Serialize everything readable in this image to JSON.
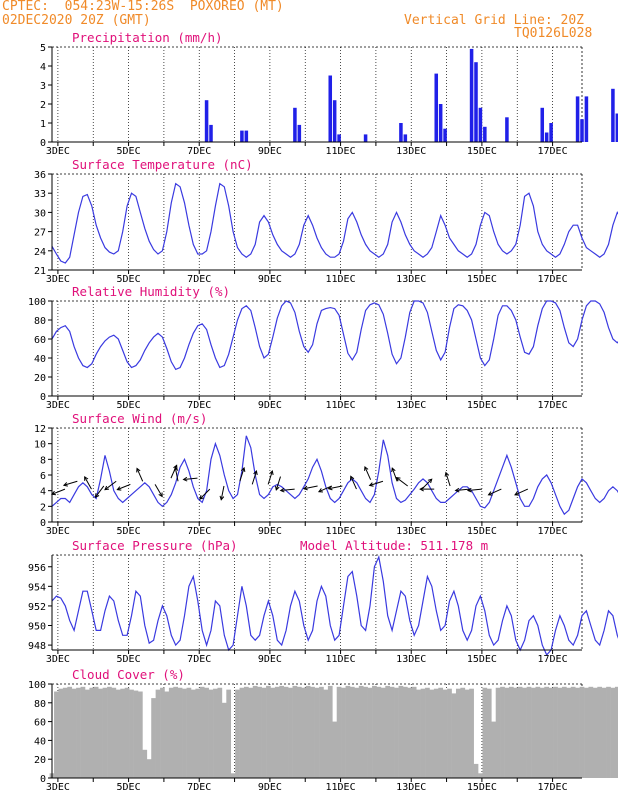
{
  "header": {
    "line1": "CPTEC:  054:23W-15:26S  POXOREO (MT)",
    "line2": "02DEC2020 20Z (GMT)",
    "grid_label": "Vertical Grid Line: 20Z",
    "code": "TQ0126L028"
  },
  "x_ticks": [
    "3DEC",
    "5DEC",
    "7DEC",
    "9DEC",
    "11DEC",
    "13DEC",
    "15DEC",
    "17DEC"
  ],
  "colors": {
    "header": "#f08a28",
    "title": "#e0107a",
    "line": "#3a3ae0",
    "bar": "#2020e8",
    "cloud": "#b0b0b0",
    "axis": "#000000"
  },
  "chart_data": [
    {
      "id": "precip",
      "type": "bar",
      "title": "Precipitation (mm/h)",
      "ylim": [
        0,
        5
      ],
      "yticks": [
        0,
        1,
        2,
        3,
        4,
        5
      ],
      "x_range_days": [
        2.833,
        17.833
      ],
      "step_hours": 3,
      "values": [
        0.0,
        0.0,
        0.0,
        0.0,
        0.0,
        0.0,
        0.0,
        0.0,
        0.0,
        0.0,
        0.0,
        0.0,
        0.0,
        0.0,
        0.0,
        0.0,
        0.0,
        0.0,
        0.0,
        0.0,
        0.0,
        0.0,
        0.0,
        0.0,
        0.0,
        0.0,
        0.0,
        0.0,
        0.0,
        0.0,
        0.0,
        0.0,
        0.0,
        0.0,
        0.0,
        2.2,
        0.9,
        0.0,
        0.0,
        0.0,
        0.0,
        0.0,
        0.0,
        0.6,
        0.6,
        0.0,
        0.0,
        0.0,
        0.0,
        0.0,
        0.0,
        0.0,
        0.0,
        0.0,
        0.0,
        1.8,
        0.9,
        0.0,
        0.0,
        0.0,
        0.0,
        0.0,
        0.0,
        3.5,
        2.2,
        0.4,
        0.0,
        0.0,
        0.0,
        0.0,
        0.0,
        0.4,
        0.0,
        0.0,
        0.0,
        0.0,
        0.0,
        0.0,
        0.0,
        1.0,
        0.4,
        0.0,
        0.0,
        0.0,
        0.0,
        0.0,
        0.0,
        3.6,
        2.0,
        0.7,
        0.0,
        0.0,
        0.0,
        0.0,
        0.0,
        4.9,
        4.2,
        1.8,
        0.8,
        0.0,
        0.0,
        0.0,
        0.0,
        1.3,
        0.0,
        0.0,
        0.0,
        0.0,
        0.0,
        0.0,
        0.0,
        1.8,
        0.5,
        1.0,
        0.0,
        0.0,
        0.0,
        0.0,
        0.0,
        2.4,
        1.2,
        2.4,
        0.0,
        0.0,
        0.0,
        0.0,
        0.0,
        2.8,
        1.5,
        0.0,
        0.0,
        0.0,
        0.0,
        0.0,
        0.0,
        0.0,
        0.0,
        0.0,
        0.0,
        0.0,
        0.0,
        0.0,
        0.0,
        0.5,
        0.0,
        0.0,
        0.0,
        0.0,
        0.0,
        0.0,
        0.0,
        1.0,
        0.7,
        0.0,
        0.0,
        0.0,
        0.0,
        0.0,
        0.0,
        2.3,
        1.5,
        0.0
      ]
    },
    {
      "id": "temp",
      "type": "line",
      "title": "Surface Temperature (nC)",
      "ylim": [
        21,
        36
      ],
      "yticks": [
        21,
        24,
        27,
        30,
        33,
        36
      ],
      "x_range_days": [
        2.833,
        17.833
      ],
      "step_hours": 3,
      "values": [
        24.7,
        23.5,
        22.4,
        22.1,
        23.0,
        26.5,
        30.0,
        32.5,
        32.8,
        31.0,
        28.0,
        26.0,
        24.5,
        23.8,
        23.5,
        24.0,
        27.0,
        31.0,
        33.0,
        32.5,
        30.0,
        27.5,
        25.5,
        24.2,
        23.5,
        24.0,
        27.0,
        31.5,
        34.5,
        34.0,
        31.5,
        28.0,
        25.0,
        23.5,
        23.5,
        24.0,
        27.0,
        31.0,
        34.5,
        34.0,
        31.0,
        27.0,
        24.5,
        23.5,
        23.0,
        23.5,
        25.0,
        28.5,
        29.5,
        28.5,
        26.5,
        25.0,
        24.0,
        23.5,
        23.0,
        23.5,
        25.0,
        28.0,
        29.5,
        28.0,
        26.0,
        24.5,
        23.5,
        23.0,
        23.0,
        23.5,
        25.5,
        29.0,
        30.0,
        28.5,
        26.5,
        25.0,
        24.0,
        23.5,
        23.0,
        23.5,
        25.0,
        28.5,
        30.0,
        28.5,
        26.5,
        25.0,
        24.0,
        23.5,
        23.0,
        23.5,
        24.5,
        27.0,
        29.5,
        28.0,
        26.0,
        25.0,
        24.0,
        23.5,
        23.0,
        23.5,
        25.0,
        28.0,
        30.0,
        29.5,
        27.0,
        25.0,
        24.0,
        23.5,
        24.0,
        25.0,
        28.0,
        32.5,
        33.0,
        31.0,
        27.0,
        25.0,
        24.0,
        23.5,
        23.0,
        23.5,
        25.0,
        27.0,
        28.0,
        28.0,
        26.0,
        24.5,
        24.0,
        23.5,
        23.0,
        23.5,
        25.0,
        28.0,
        30.0,
        29.0,
        26.5,
        24.5,
        23.5,
        22.8,
        22.5,
        23.0,
        24.0,
        26.0,
        27.0,
        26.0,
        24.0,
        23.0,
        23.0,
        23.5,
        24.0,
        24.5,
        25.5,
        27.0,
        29.5,
        29.0,
        27.0,
        25.0,
        24.0,
        23.5,
        23.5,
        24.0,
        25.0,
        27.0,
        28.0,
        27.5,
        27.0,
        26.5
      ]
    },
    {
      "id": "rh",
      "type": "line",
      "title": "Relative Humidity (%)",
      "ylim": [
        0,
        100
      ],
      "yticks": [
        0,
        20,
        40,
        60,
        80,
        100
      ],
      "x_range_days": [
        2.833,
        17.833
      ],
      "step_hours": 3,
      "values": [
        60.0,
        68.0,
        72.0,
        74.0,
        68.0,
        52.0,
        40.0,
        32.0,
        30.0,
        34.0,
        44.0,
        52.0,
        58.0,
        62.0,
        64.0,
        60.0,
        48.0,
        36.0,
        30.0,
        32.0,
        38.0,
        48.0,
        56.0,
        62.0,
        66.0,
        62.0,
        50.0,
        36.0,
        28.0,
        30.0,
        40.0,
        54.0,
        66.0,
        74.0,
        76.0,
        70.0,
        54.0,
        40.0,
        30.0,
        32.0,
        44.0,
        62.0,
        80.0,
        92.0,
        95.0,
        90.0,
        72.0,
        52.0,
        40.0,
        44.0,
        62.0,
        82.0,
        95.0,
        100.0,
        98.0,
        88.0,
        68.0,
        52.0,
        46.0,
        54.0,
        76.0,
        90.0,
        92.0,
        93.0,
        92.0,
        85.0,
        65.0,
        45.0,
        38.0,
        46.0,
        70.0,
        90.0,
        96.0,
        98.0,
        96.0,
        86.0,
        66.0,
        44.0,
        34.0,
        40.0,
        62.0,
        88.0,
        100.0,
        100.0,
        98.0,
        88.0,
        68.0,
        48.0,
        38.0,
        46.0,
        72.0,
        92.0,
        96.0,
        95.0,
        90.0,
        80.0,
        60.0,
        40.0,
        32.0,
        38.0,
        60.0,
        85.0,
        95.0,
        95.0,
        90.0,
        80.0,
        62.0,
        46.0,
        44.0,
        52.0,
        74.0,
        92.0,
        100.0,
        100.0,
        98.0,
        90.0,
        72.0,
        56.0,
        52.0,
        60.0,
        80.0,
        95.0,
        100.0,
        100.0,
        97.0,
        88.0,
        72.0,
        60.0,
        56.0,
        62.0,
        78.0,
        92.0,
        98.0,
        99.0,
        97.0,
        90.0,
        74.0,
        58.0,
        48.0,
        52.0,
        70.0,
        86.0,
        92.0,
        93.0,
        91.0,
        84.0,
        66.0,
        50.0,
        42.0,
        50.0,
        68.0,
        84.0,
        92.0,
        95.0,
        96.0,
        90.0,
        72.0,
        54.0,
        50.0,
        62.0,
        84.0,
        96.0,
        99.0,
        95.0,
        88.0,
        92.0
      ]
    },
    {
      "id": "wind",
      "type": "line",
      "title": "Surface Wind (m/s)",
      "ylim": [
        0,
        12
      ],
      "yticks": [
        0,
        2,
        4,
        6,
        8,
        10,
        12
      ],
      "x_range_days": [
        2.833,
        17.833
      ],
      "step_hours": 3,
      "values": [
        2.0,
        2.5,
        3.0,
        3.0,
        2.5,
        3.5,
        4.5,
        5.0,
        4.5,
        3.5,
        3.0,
        5.5,
        8.5,
        6.5,
        4.0,
        3.0,
        2.5,
        3.0,
        3.5,
        4.0,
        4.5,
        5.0,
        4.5,
        3.5,
        2.5,
        2.0,
        2.5,
        3.5,
        5.0,
        7.0,
        8.0,
        6.5,
        4.5,
        3.0,
        2.5,
        4.0,
        8.0,
        10.0,
        8.5,
        6.0,
        4.0,
        3.0,
        3.5,
        6.5,
        11.0,
        9.5,
        6.0,
        3.5,
        3.0,
        3.5,
        4.5,
        4.8,
        4.5,
        4.0,
        3.5,
        3.0,
        3.5,
        4.5,
        5.5,
        7.0,
        8.0,
        6.5,
        4.5,
        3.0,
        2.5,
        3.0,
        4.0,
        5.0,
        5.5,
        5.0,
        4.0,
        3.0,
        2.5,
        3.5,
        6.5,
        10.5,
        8.5,
        5.0,
        3.0,
        2.5,
        2.8,
        3.5,
        4.2,
        5.0,
        5.5,
        5.0,
        4.0,
        3.0,
        2.5,
        2.5,
        3.0,
        3.5,
        4.0,
        4.5,
        4.5,
        4.0,
        3.0,
        2.0,
        1.8,
        2.5,
        4.0,
        5.5,
        7.0,
        8.5,
        7.0,
        5.0,
        3.0,
        2.0,
        2.0,
        3.0,
        4.5,
        5.5,
        6.0,
        5.0,
        3.5,
        2.0,
        1.0,
        1.5,
        3.0,
        4.5,
        5.5,
        5.0,
        4.0,
        3.0,
        2.5,
        3.0,
        4.0,
        4.5,
        4.0,
        3.0,
        3.5,
        5.0,
        6.0,
        5.5,
        4.0,
        3.0,
        3.0,
        3.5,
        4.0,
        4.5,
        5.0,
        4.5,
        3.5,
        3.0,
        3.5,
        4.0,
        4.5,
        4.5,
        4.0,
        3.5,
        3.0,
        3.5,
        4.0,
        3.5,
        3.0,
        3.5,
        4.0,
        3.5
      ],
      "arrows": [
        {
          "d": 3.2,
          "s": 4.2,
          "dx": -1,
          "dy": -0.4
        },
        {
          "d": 3.55,
          "s": 5.2,
          "dx": -1,
          "dy": -0.3
        },
        {
          "d": 3.95,
          "s": 4.2,
          "dx": -0.5,
          "dy": 0.9
        },
        {
          "d": 4.3,
          "s": 4.6,
          "dx": -0.6,
          "dy": -0.8
        },
        {
          "d": 4.65,
          "s": 5.2,
          "dx": -0.8,
          "dy": -0.6
        },
        {
          "d": 5.05,
          "s": 4.8,
          "dx": -1,
          "dy": -0.4
        },
        {
          "d": 5.4,
          "s": 5.2,
          "dx": -0.4,
          "dy": 0.9
        },
        {
          "d": 5.75,
          "s": 4.8,
          "dx": 0.5,
          "dy": -0.85
        },
        {
          "d": 6.2,
          "s": 5.6,
          "dx": 0.4,
          "dy": 0.9
        },
        {
          "d": 6.4,
          "s": 5.2,
          "dx": -0.2,
          "dy": 1
        },
        {
          "d": 6.95,
          "s": 5.6,
          "dx": -1,
          "dy": -0.1
        },
        {
          "d": 7.3,
          "s": 4.2,
          "dx": -0.7,
          "dy": -0.7
        },
        {
          "d": 7.7,
          "s": 4.6,
          "dx": -0.2,
          "dy": -1
        },
        {
          "d": 8.15,
          "s": 5.2,
          "dx": 0.3,
          "dy": 0.95
        },
        {
          "d": 8.5,
          "s": 4.8,
          "dx": 0.3,
          "dy": 0.95
        },
        {
          "d": 8.95,
          "s": 4.8,
          "dx": 0.3,
          "dy": 0.95
        },
        {
          "d": 9.3,
          "s": 5.8,
          "dx": -0.3,
          "dy": -0.95
        },
        {
          "d": 9.7,
          "s": 4.2,
          "dx": -1,
          "dy": -0.1
        },
        {
          "d": 10.35,
          "s": 4.6,
          "dx": -1,
          "dy": -0.2
        },
        {
          "d": 10.75,
          "s": 4.6,
          "dx": -0.9,
          "dy": -0.4
        },
        {
          "d": 11.05,
          "s": 4.6,
          "dx": -1,
          "dy": -0.2
        },
        {
          "d": 11.45,
          "s": 4.2,
          "dx": -0.4,
          "dy": 0.9
        },
        {
          "d": 11.85,
          "s": 5.4,
          "dx": -0.4,
          "dy": 0.9
        },
        {
          "d": 12.2,
          "s": 5.2,
          "dx": -0.95,
          "dy": -0.3
        },
        {
          "d": 12.6,
          "s": 5.2,
          "dx": -0.35,
          "dy": 0.95
        },
        {
          "d": 12.9,
          "s": 4.6,
          "dx": -0.8,
          "dy": 0.6
        },
        {
          "d": 13.3,
          "s": 4.2,
          "dx": 0.7,
          "dy": 0.7
        },
        {
          "d": 13.65,
          "s": 4.2,
          "dx": -1,
          "dy": 0
        },
        {
          "d": 14.1,
          "s": 4.6,
          "dx": -0.3,
          "dy": 0.95
        },
        {
          "d": 14.65,
          "s": 4.2,
          "dx": -1,
          "dy": -0.1
        },
        {
          "d": 15.0,
          "s": 4.2,
          "dx": -1,
          "dy": -0.1
        },
        {
          "d": 15.55,
          "s": 4.2,
          "dx": -0.9,
          "dy": -0.4
        },
        {
          "d": 16.3,
          "s": 4.2,
          "dx": -0.9,
          "dy": -0.4
        }
      ]
    },
    {
      "id": "press",
      "type": "line",
      "title": "Surface Pressure (hPa)",
      "annotation": "Model Altitude: 511.178 m",
      "ylim": [
        947.5,
        957.2
      ],
      "yticks": [
        948,
        950,
        952,
        954,
        956
      ],
      "x_range_days": [
        2.833,
        17.833
      ],
      "step_hours": 3,
      "values": [
        952.5,
        953.0,
        952.8,
        952.0,
        950.5,
        949.5,
        951.5,
        953.5,
        953.5,
        951.5,
        949.5,
        949.5,
        951.5,
        953.0,
        952.5,
        950.5,
        949.0,
        949.0,
        951.0,
        953.5,
        953.0,
        950.0,
        948.2,
        948.5,
        950.5,
        952.0,
        951.0,
        949.0,
        948.0,
        948.5,
        951.0,
        954.0,
        955.0,
        952.5,
        949.5,
        948.0,
        949.5,
        952.5,
        952.0,
        949.0,
        947.5,
        948.0,
        951.0,
        954.0,
        952.0,
        949.0,
        948.5,
        949.0,
        951.0,
        952.5,
        951.0,
        948.5,
        948.0,
        949.5,
        952.0,
        953.5,
        952.5,
        950.0,
        948.5,
        949.5,
        952.5,
        954.0,
        953.0,
        950.0,
        948.5,
        949.0,
        952.0,
        955.0,
        955.5,
        953.0,
        950.0,
        949.5,
        952.0,
        956.0,
        957.0,
        954.5,
        951.0,
        949.5,
        951.5,
        953.5,
        953.0,
        950.5,
        949.0,
        950.0,
        952.5,
        955.0,
        954.0,
        951.5,
        949.5,
        950.0,
        952.5,
        953.5,
        952.0,
        949.5,
        948.5,
        949.5,
        952.0,
        953.0,
        951.5,
        949.0,
        948.0,
        948.5,
        950.5,
        952.0,
        951.0,
        948.5,
        947.5,
        948.5,
        950.5,
        951.0,
        950.0,
        948.0,
        947.0,
        947.5,
        949.5,
        951.0,
        950.0,
        948.5,
        948.0,
        949.0,
        951.0,
        951.5,
        950.0,
        948.5,
        948.0,
        949.5,
        951.5,
        951.0,
        949.0,
        947.8,
        948.0,
        950.0,
        951.5,
        950.5,
        948.5,
        947.8,
        948.5,
        950.5,
        951.5,
        950.0,
        948.5,
        948.0,
        948.5,
        950.0,
        951.0,
        950.0,
        948.5,
        947.8,
        948.5,
        950.0,
        950.5,
        949.5,
        948.2,
        947.5,
        948.0,
        949.5,
        950.5,
        949.5,
        948.5,
        948.0,
        949.0,
        950.0,
        949.0,
        948.0,
        948.0,
        949.5
      ]
    },
    {
      "id": "cloud",
      "type": "area",
      "title": "Cloud Cover (%)",
      "ylim": [
        0,
        100
      ],
      "yticks": [
        0,
        20,
        40,
        60,
        80,
        100
      ],
      "x_range_days": [
        2.833,
        17.833
      ],
      "step_hours": 3,
      "values": [
        5.0,
        92.0,
        95.0,
        96.0,
        97.0,
        95.0,
        96.0,
        97.0,
        94.0,
        96.0,
        97.0,
        95.0,
        96.0,
        97.0,
        96.0,
        94.0,
        95.0,
        96.0,
        94.0,
        93.0,
        92.0,
        30.0,
        20.0,
        85.0,
        94.0,
        96.0,
        92.0,
        96.0,
        97.0,
        96.0,
        95.0,
        96.0,
        94.0,
        95.0,
        97.0,
        96.0,
        94.0,
        95.0,
        96.0,
        80.0,
        94.0,
        5.0,
        94.0,
        96.0,
        97.0,
        96.0,
        98.0,
        97.0,
        96.0,
        98.0,
        96.0,
        97.0,
        98.0,
        97.0,
        96.0,
        98.0,
        97.0,
        96.0,
        98.0,
        97.0,
        96.0,
        97.0,
        94.0,
        98.0,
        60.0,
        97.0,
        96.0,
        98.0,
        97.0,
        96.0,
        98.0,
        97.0,
        96.0,
        98.0,
        97.0,
        96.0,
        98.0,
        97.0,
        96.0,
        98.0,
        97.0,
        96.0,
        97.0,
        94.0,
        95.0,
        96.0,
        94.0,
        95.0,
        96.0,
        94.0,
        95.0,
        90.0,
        95.0,
        96.0,
        94.0,
        95.0,
        15.0,
        5.0,
        96.0,
        95.0,
        60.0,
        96.0,
        97.0,
        96.0,
        97.0,
        96.0,
        97.0,
        96.0,
        97.0,
        96.0,
        97.0,
        96.0,
        97.0,
        96.0,
        97.0,
        96.0,
        97.0,
        96.0,
        97.0,
        96.0,
        97.0,
        96.0,
        97.0,
        96.0,
        97.0,
        96.0,
        97.0,
        96.0,
        97.0,
        96.0,
        97.0,
        96.0,
        97.0,
        96.0,
        97.0,
        96.0,
        97.0,
        96.0,
        97.0,
        96.0,
        97.0,
        96.0,
        97.0,
        96.0,
        97.0,
        96.0,
        97.0,
        96.0,
        97.0,
        96.0,
        97.0,
        96.0,
        97.0,
        96.0,
        97.0,
        96.0,
        97.0,
        96.0,
        97.0,
        96.0,
        97.0,
        96.0,
        97.0,
        96.0,
        97.0,
        96.0,
        97.0,
        96.0,
        97.0,
        96.0
      ]
    }
  ]
}
